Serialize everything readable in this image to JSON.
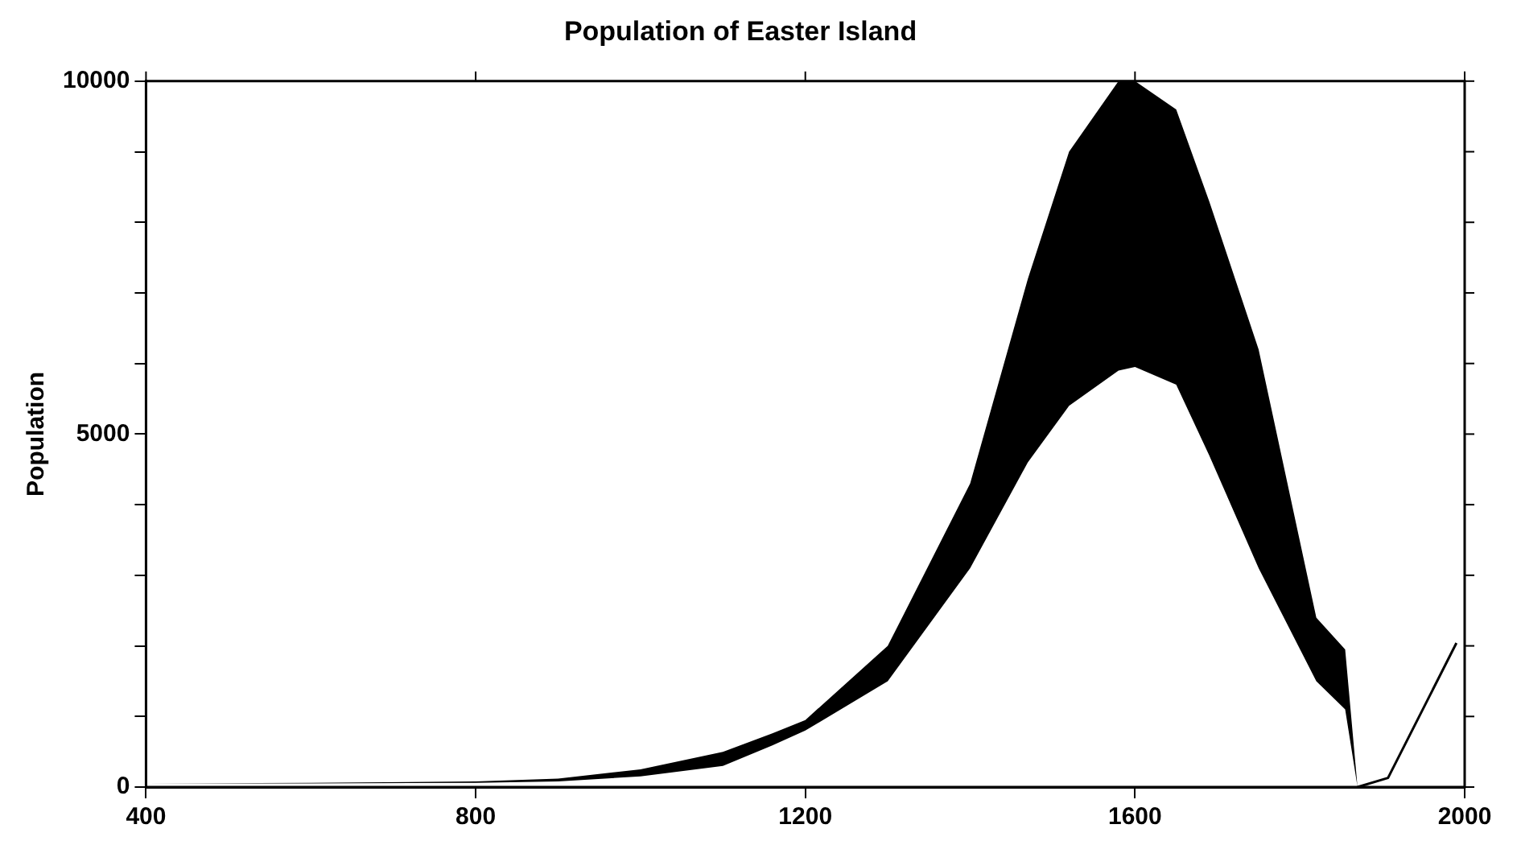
{
  "chart_data": {
    "type": "line",
    "title": "Population of Easter Island",
    "ylabel": "Population",
    "xlim": [
      400,
      2000
    ],
    "xticks": [
      400,
      800,
      1200,
      1600,
      2000
    ],
    "ylim": [
      0,
      10000
    ],
    "yticks": [
      0,
      {
        "value": 1000,
        "label": null
      },
      {
        "value": 2000,
        "label": null
      },
      {
        "value": 3000,
        "label": null
      },
      {
        "value": 4000,
        "label": null
      },
      5000,
      {
        "value": 6000,
        "label": null
      },
      {
        "value": 7000,
        "label": null
      },
      {
        "value": 8000,
        "label": null
      },
      {
        "value": 9000,
        "label": null
      },
      10000
    ],
    "grid": false,
    "legend": false,
    "marker": "none",
    "line_style": "solid",
    "series": [
      {
        "color": "#000000",
        "x": [
          400,
          600,
          800,
          900,
          1000,
          1100,
          1160,
          1200,
          1300,
          1400,
          1470,
          1520,
          1580,
          1600,
          1650,
          1690,
          1750,
          1820,
          1855,
          1870,
          1907,
          1990
        ],
        "values": [
          null,
          null,
          null,
          null,
          null,
          null,
          null,
          null,
          null,
          null,
          null,
          null,
          null,
          null,
          null,
          null,
          null,
          null,
          null,
          0,
          130,
          2040
        ],
        "lower": [
          50,
          50,
          60,
          80,
          150,
          300,
          590,
          800,
          1500,
          3100,
          4600,
          5400,
          5900,
          5950,
          5700,
          4700,
          3100,
          1500,
          1100,
          0,
          null,
          null
        ],
        "upper": [
          50,
          60,
          80,
          120,
          250,
          500,
          760,
          950,
          2000,
          4300,
          7200,
          9000,
          10000,
          10000,
          9600,
          8300,
          6200,
          2400,
          1950,
          0,
          null,
          null
        ]
      }
    ]
  }
}
